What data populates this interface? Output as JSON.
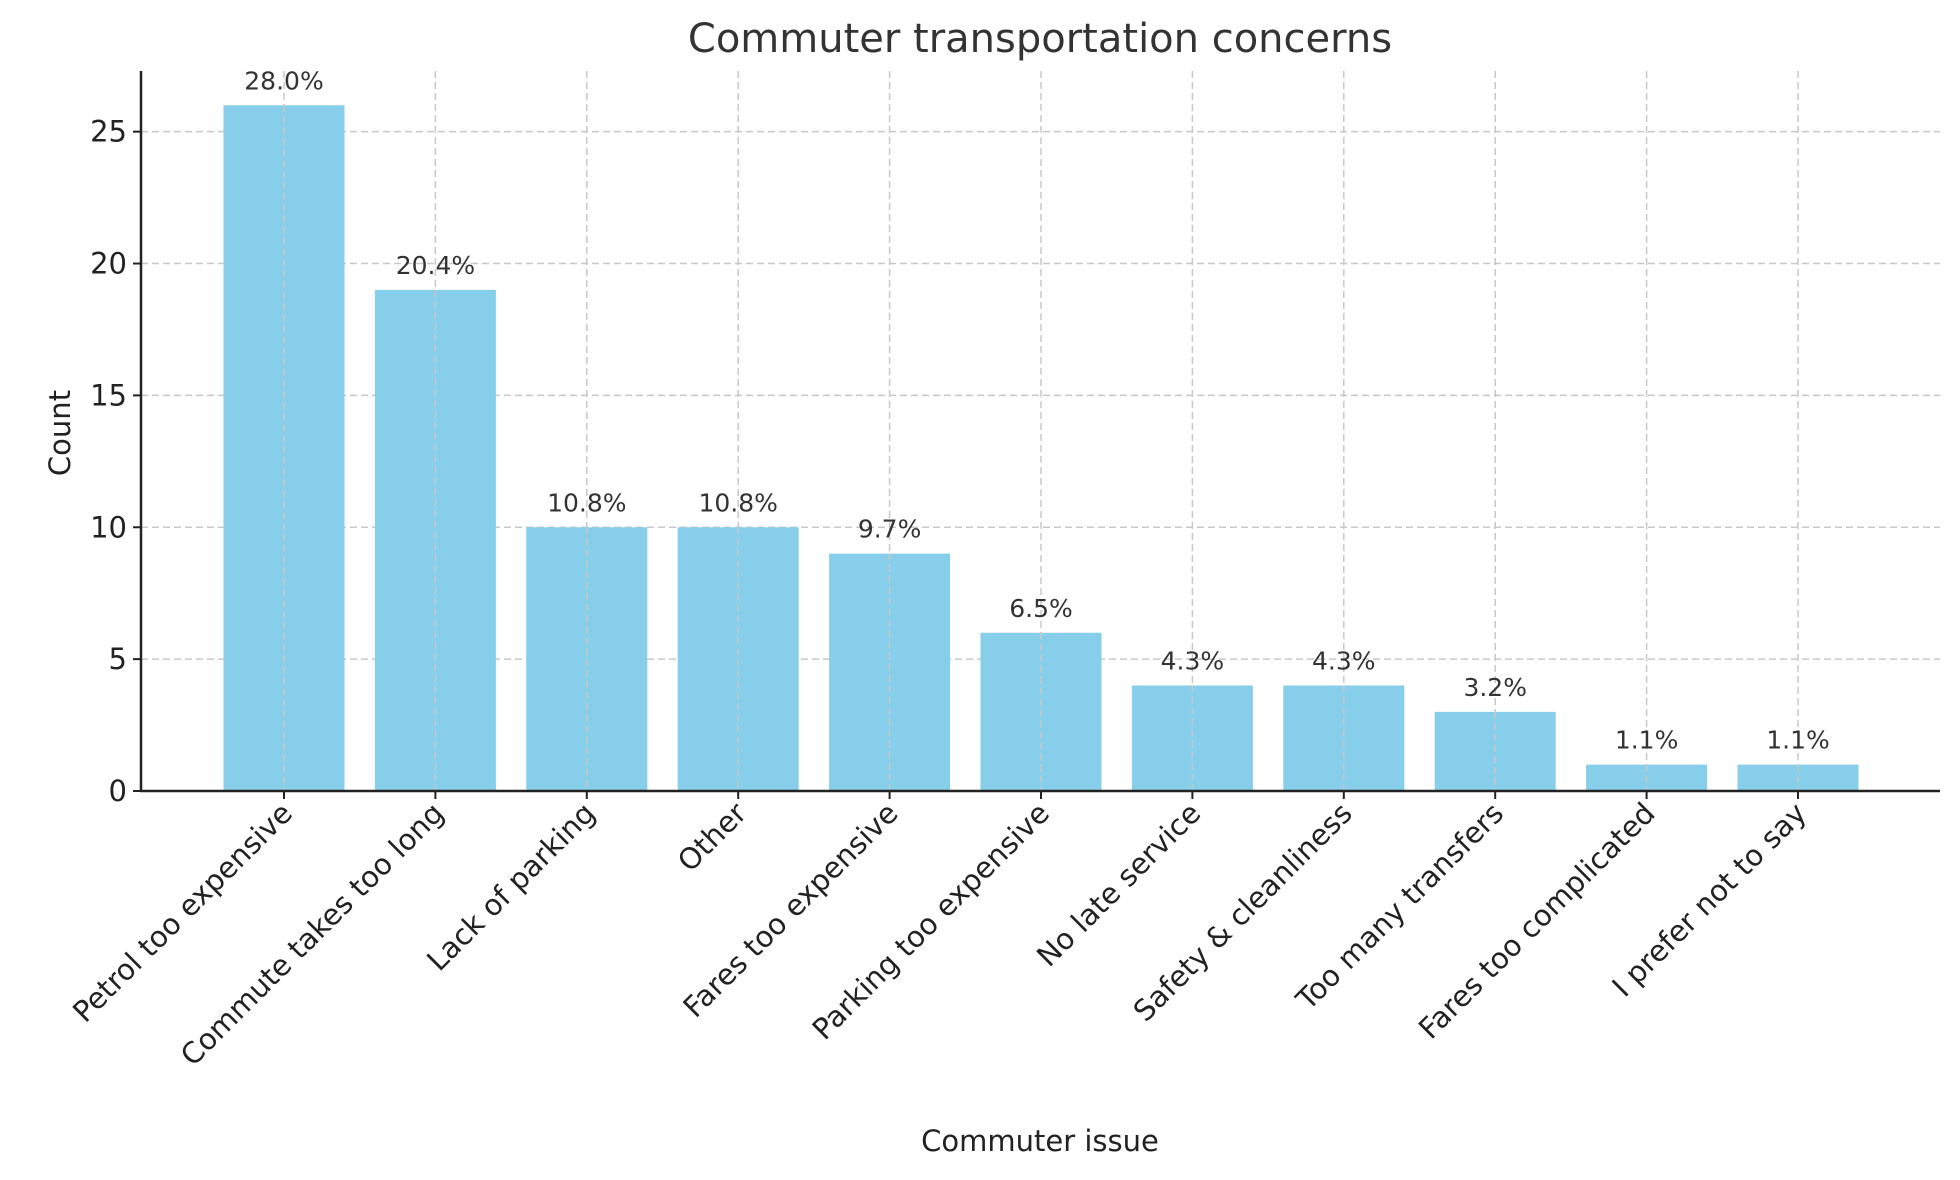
{
  "chart_data": {
    "type": "bar",
    "title": "Commuter transportation concerns",
    "xlabel": "Commuter issue",
    "ylabel": "Count",
    "categories": [
      "Petrol too expensive",
      "Commute takes too long",
      "Lack of parking",
      "Other",
      "Fares too expensive",
      "Parking too expensive",
      "No late service",
      "Safety & cleanliness",
      "Too many transfers",
      "Fares too complicated",
      "I prefer not to say"
    ],
    "values": [
      26,
      19,
      10,
      10,
      9,
      6,
      4,
      4,
      3,
      1,
      1
    ],
    "data_labels": [
      "28.0%",
      "20.4%",
      "10.8%",
      "10.8%",
      "9.7%",
      "6.5%",
      "4.3%",
      "4.3%",
      "3.2%",
      "1.1%",
      "1.1%"
    ],
    "ylim": [
      0,
      27.3
    ],
    "yticks": [
      "0",
      "5",
      "10",
      "15",
      "20",
      "25"
    ],
    "grid": true,
    "bar_color": "#87CEEB",
    "legend": "none"
  }
}
